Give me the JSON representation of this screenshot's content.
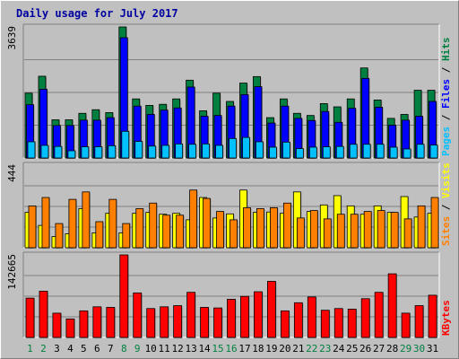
{
  "chart_data": {
    "type": "bar",
    "title": "Daily usage for July 2017",
    "days": [
      "1",
      "2",
      "3",
      "4",
      "5",
      "6",
      "7",
      "8",
      "9",
      "10",
      "11",
      "12",
      "13",
      "14",
      "15",
      "16",
      "17",
      "18",
      "19",
      "20",
      "21",
      "22",
      "23",
      "24",
      "25",
      "26",
      "27",
      "28",
      "29",
      "30",
      "31"
    ],
    "weekend_days": [
      "1",
      "2",
      "8",
      "9",
      "15",
      "16",
      "22",
      "23",
      "29",
      "30"
    ],
    "colors": {
      "hits": "#008040",
      "files": "#0000FF",
      "pages": "#00C0FF",
      "visits": "#FFFF00",
      "sites": "#FF8000",
      "kbytes": "#FF0000",
      "weekday_label": "#000000",
      "weekend_label": "#008040"
    },
    "panels": [
      {
        "key": "top",
        "max_label": "3639",
        "ymax": 3639,
        "legend": [
          {
            "text": "Pages",
            "color": "#00C0FF"
          },
          {
            "text": " / ",
            "color": "#000000"
          },
          {
            "text": "Files",
            "color": "#0000FF"
          },
          {
            "text": " / ",
            "color": "#000000"
          },
          {
            "text": "Hits",
            "color": "#008040"
          }
        ],
        "series": [
          {
            "name": "Hits",
            "color": "#008040",
            "values": [
              1800,
              2270,
              1060,
              1060,
              1240,
              1340,
              1260,
              3639,
              1640,
              1460,
              1490,
              1640,
              2160,
              1310,
              1800,
              1570,
              2080,
              2260,
              1120,
              1640,
              1240,
              1180,
              1510,
              1420,
              1640,
              2500,
              1610,
              1100,
              1210,
              1880,
              1880
            ]
          },
          {
            "text_only": false,
            "name": "Files",
            "color": "#0000FF",
            "values": [
              1480,
              1910,
              900,
              900,
              1050,
              1050,
              1120,
              3340,
              1440,
              1210,
              1330,
              1390,
              1970,
              1160,
              1180,
              1440,
              1760,
              1980,
              970,
              1440,
              1100,
              1040,
              1290,
              990,
              1380,
              2210,
              1410,
              910,
              1050,
              1160,
              1570
            ]
          },
          {
            "name": "Pages",
            "color": "#00C0FF",
            "values": [
              450,
              350,
              320,
              200,
              310,
              310,
              340,
              740,
              460,
              330,
              350,
              390,
              380,
              390,
              350,
              540,
              570,
              450,
              300,
              440,
              260,
              300,
              310,
              320,
              380,
              380,
              380,
              300,
              250,
              380,
              360
            ]
          }
        ]
      },
      {
        "key": "mid",
        "max_label": "444",
        "ymax": 444,
        "legend": [
          {
            "text": "Sites",
            "color": "#FF8000"
          },
          {
            "text": " / ",
            "color": "#000000"
          },
          {
            "text": "Visits",
            "color": "#FFFF00"
          }
        ],
        "series": [
          {
            "name": "Visits",
            "color": "#FFFF00",
            "values": [
              190,
              120,
              60,
              75,
              210,
              80,
              185,
              80,
              185,
              190,
              180,
              185,
              150,
              270,
              160,
              182,
              310,
              190,
              192,
              185,
              300,
              195,
              230,
              280,
              225,
              180,
              225,
              190,
              275,
              165,
              185
            ]
          },
          {
            "name": "Sites",
            "color": "#FF8000",
            "values": [
              225,
              270,
              130,
              260,
              300,
              140,
              260,
              130,
              210,
              240,
              175,
              175,
              310,
              265,
              195,
              150,
              215,
              210,
              215,
              240,
              160,
              200,
              155,
              180,
              180,
              195,
              200,
              190,
              155,
              225,
              270
            ]
          }
        ]
      },
      {
        "key": "bot",
        "max_label": "142665",
        "ymax": 142665,
        "legend": [
          {
            "text": "KBytes",
            "color": "#FF0000"
          }
        ],
        "series": [
          {
            "name": "KBytes",
            "color": "#FF0000",
            "values": [
              68000,
              80000,
              42000,
              32000,
              46000,
              53000,
              52000,
              142665,
              77000,
              50000,
              53000,
              55000,
              78000,
              52000,
              51000,
              66000,
              71000,
              79000,
              97000,
              46000,
              60000,
              70000,
              47000,
              50000,
              49000,
              67000,
              78000,
              110000,
              42000,
              55000,
              73000
            ]
          }
        ]
      }
    ]
  }
}
